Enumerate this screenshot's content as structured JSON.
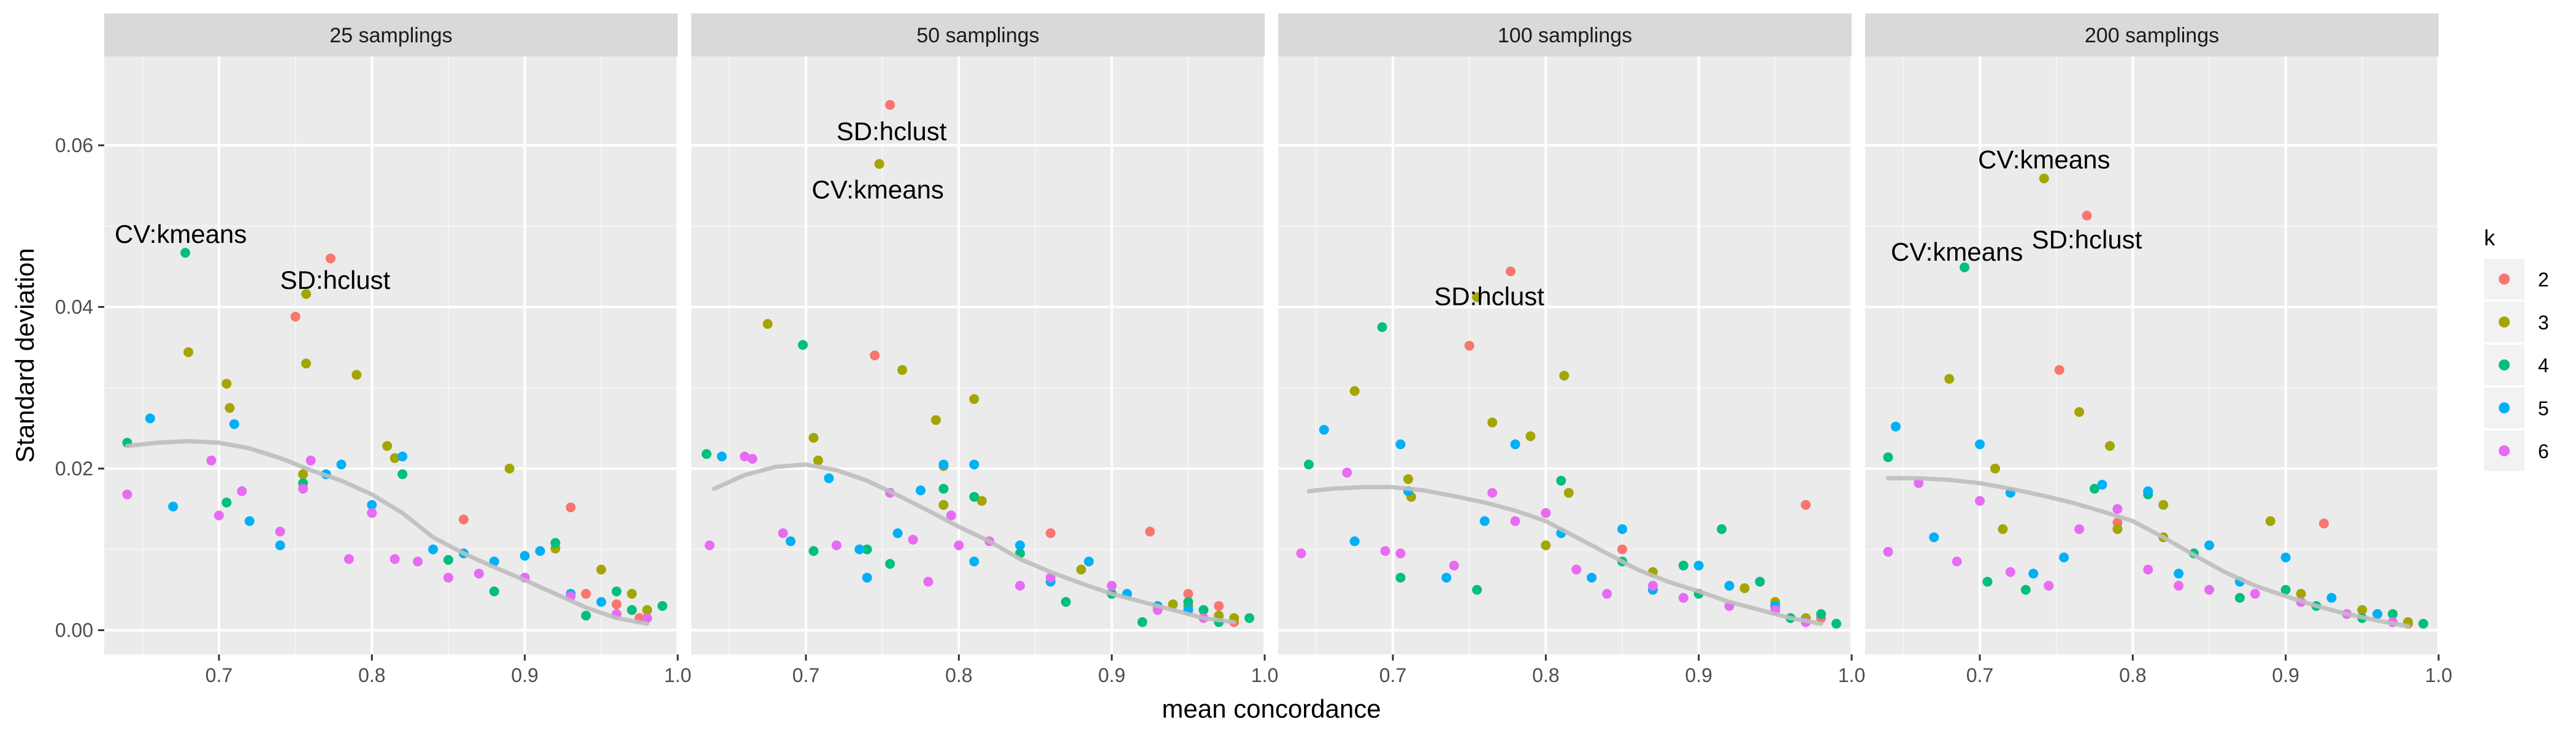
{
  "chart_data": {
    "type": "scatter",
    "xlabel": "mean concordance",
    "ylabel": "Standard deviation",
    "xlim": [
      0.625,
      1.0
    ],
    "ylim": [
      -0.003,
      0.071
    ],
    "x_ticks": [
      0.7,
      0.8,
      0.9,
      1.0
    ],
    "x_tick_labels": [
      "0.7",
      "0.8",
      "0.9",
      "1.0"
    ],
    "y_ticks": [
      0.0,
      0.02,
      0.04,
      0.06
    ],
    "y_tick_labels": [
      "0.00",
      "0.02",
      "0.04",
      "0.06"
    ],
    "grid": true,
    "legend": {
      "title": "k",
      "placement": "right",
      "entries": [
        {
          "label": "2",
          "color": "#F8766D"
        },
        {
          "label": "3",
          "color": "#A3A500"
        },
        {
          "label": "4",
          "color": "#00BF7D"
        },
        {
          "label": "5",
          "color": "#00B0F6"
        },
        {
          "label": "6",
          "color": "#E76BF3"
        }
      ]
    },
    "smooth_color": "#BEBEBE",
    "panels": [
      {
        "title": "25 samplings",
        "series": [
          {
            "name": "2",
            "x": [
              0.75,
              0.773,
              0.86,
              0.93,
              0.94,
              0.96,
              0.975
            ],
            "y": [
              0.0388,
              0.046,
              0.0137,
              0.0152,
              0.0045,
              0.0032,
              0.0015
            ]
          },
          {
            "name": "3",
            "x": [
              0.68,
              0.705,
              0.707,
              0.757,
              0.757,
              0.755,
              0.79,
              0.81,
              0.815,
              0.89,
              0.95,
              0.97,
              0.98,
              0.92
            ],
            "y": [
              0.0344,
              0.0305,
              0.0275,
              0.0416,
              0.033,
              0.0193,
              0.0316,
              0.0228,
              0.0213,
              0.02,
              0.0075,
              0.0045,
              0.0025,
              0.0101
            ]
          },
          {
            "name": "4",
            "x": [
              0.64,
              0.678,
              0.705,
              0.755,
              0.82,
              0.85,
              0.88,
              0.92,
              0.94,
              0.96,
              0.97,
              0.98,
              0.99,
              0.9
            ],
            "y": [
              0.0232,
              0.0467,
              0.0158,
              0.0182,
              0.0193,
              0.0087,
              0.0048,
              0.0108,
              0.0018,
              0.0048,
              0.0025,
              0.0015,
              0.003,
              0.0065
            ]
          },
          {
            "name": "5",
            "x": [
              0.655,
              0.67,
              0.71,
              0.72,
              0.74,
              0.77,
              0.78,
              0.8,
              0.82,
              0.84,
              0.86,
              0.88,
              0.9,
              0.91,
              0.93,
              0.95
            ],
            "y": [
              0.0262,
              0.0153,
              0.0255,
              0.0135,
              0.0105,
              0.0193,
              0.0205,
              0.0155,
              0.0215,
              0.01,
              0.0095,
              0.0085,
              0.0092,
              0.0098,
              0.0045,
              0.0035
            ]
          },
          {
            "name": "6",
            "x": [
              0.64,
              0.695,
              0.7,
              0.715,
              0.74,
              0.76,
              0.785,
              0.8,
              0.815,
              0.83,
              0.85,
              0.87,
              0.9,
              0.93,
              0.96,
              0.98,
              0.755
            ],
            "y": [
              0.0168,
              0.021,
              0.0142,
              0.0172,
              0.0122,
              0.021,
              0.0088,
              0.0145,
              0.0088,
              0.0085,
              0.0065,
              0.007,
              0.0065,
              0.0042,
              0.002,
              0.0015,
              0.0175
            ]
          }
        ],
        "smooth": {
          "x": [
            0.64,
            0.66,
            0.68,
            0.7,
            0.72,
            0.74,
            0.76,
            0.78,
            0.8,
            0.82,
            0.84,
            0.86,
            0.88,
            0.9,
            0.92,
            0.94,
            0.96,
            0.98
          ],
          "y": [
            0.0228,
            0.0232,
            0.0234,
            0.0232,
            0.0225,
            0.0213,
            0.0198,
            0.0185,
            0.0168,
            0.0145,
            0.0115,
            0.0095,
            0.0078,
            0.0062,
            0.0045,
            0.0028,
            0.0015,
            0.0008
          ]
        },
        "annotations": [
          {
            "text": "CV:kmeans",
            "x": 0.675,
            "y": 0.049
          },
          {
            "text": "SD:hclust",
            "x": 0.776,
            "y": 0.0433
          }
        ]
      },
      {
        "title": "50 samplings",
        "series": [
          {
            "name": "2",
            "x": [
              0.745,
              0.755,
              0.86,
              0.925,
              0.95,
              0.97,
              0.98
            ],
            "y": [
              0.034,
              0.065,
              0.012,
              0.0122,
              0.0045,
              0.003,
              0.001
            ]
          },
          {
            "name": "3",
            "x": [
              0.675,
              0.705,
              0.708,
              0.748,
              0.763,
              0.785,
              0.79,
              0.81,
              0.815,
              0.79,
              0.88,
              0.95,
              0.97,
              0.98,
              0.94
            ],
            "y": [
              0.0379,
              0.0238,
              0.021,
              0.0577,
              0.0322,
              0.026,
              0.0203,
              0.0286,
              0.016,
              0.0155,
              0.0075,
              0.003,
              0.0018,
              0.0015,
              0.0032
            ]
          },
          {
            "name": "4",
            "x": [
              0.635,
              0.698,
              0.705,
              0.74,
              0.755,
              0.79,
              0.81,
              0.84,
              0.87,
              0.9,
              0.92,
              0.95,
              0.97,
              0.96,
              0.99
            ],
            "y": [
              0.0218,
              0.0353,
              0.0098,
              0.01,
              0.0082,
              0.0175,
              0.0165,
              0.0095,
              0.0035,
              0.0045,
              0.001,
              0.0035,
              0.001,
              0.0025,
              0.0015
            ]
          },
          {
            "name": "5",
            "x": [
              0.645,
              0.69,
              0.715,
              0.735,
              0.74,
              0.76,
              0.775,
              0.79,
              0.81,
              0.81,
              0.84,
              0.86,
              0.885,
              0.91,
              0.93,
              0.95
            ],
            "y": [
              0.0215,
              0.011,
              0.0188,
              0.01,
              0.0065,
              0.012,
              0.0173,
              0.0205,
              0.0205,
              0.0085,
              0.0105,
              0.006,
              0.0085,
              0.0045,
              0.003,
              0.0025
            ]
          },
          {
            "name": "6",
            "x": [
              0.637,
              0.66,
              0.665,
              0.685,
              0.72,
              0.755,
              0.77,
              0.78,
              0.795,
              0.8,
              0.82,
              0.84,
              0.86,
              0.9,
              0.93,
              0.96
            ],
            "y": [
              0.0105,
              0.0215,
              0.0212,
              0.012,
              0.0105,
              0.017,
              0.0112,
              0.006,
              0.0142,
              0.0105,
              0.011,
              0.0055,
              0.0065,
              0.0055,
              0.0025,
              0.0015
            ]
          }
        ],
        "smooth": {
          "x": [
            0.64,
            0.66,
            0.68,
            0.7,
            0.72,
            0.74,
            0.76,
            0.78,
            0.8,
            0.82,
            0.84,
            0.86,
            0.88,
            0.9,
            0.92,
            0.94,
            0.96,
            0.98
          ],
          "y": [
            0.0175,
            0.0192,
            0.0202,
            0.0205,
            0.0198,
            0.0185,
            0.0167,
            0.0148,
            0.0128,
            0.011,
            0.0088,
            0.0072,
            0.0058,
            0.0045,
            0.0035,
            0.0025,
            0.0015,
            0.001
          ]
        },
        "annotations": [
          {
            "text": "SD:hclust",
            "x": 0.756,
            "y": 0.0617
          },
          {
            "text": "CV:kmeans",
            "x": 0.747,
            "y": 0.0545
          }
        ]
      },
      {
        "title": "100 samplings",
        "series": [
          {
            "name": "2",
            "x": [
              0.75,
              0.777,
              0.85,
              0.97,
              0.98
            ],
            "y": [
              0.0352,
              0.0444,
              0.01,
              0.0155,
              0.0015
            ]
          },
          {
            "name": "3",
            "x": [
              0.675,
              0.71,
              0.712,
              0.755,
              0.765,
              0.79,
              0.812,
              0.815,
              0.87,
              0.93,
              0.95,
              0.97,
              0.8
            ],
            "y": [
              0.0296,
              0.0187,
              0.0165,
              0.0412,
              0.0257,
              0.024,
              0.0315,
              0.017,
              0.0072,
              0.0052,
              0.0035,
              0.0015,
              0.0105
            ]
          },
          {
            "name": "4",
            "x": [
              0.645,
              0.693,
              0.705,
              0.755,
              0.81,
              0.85,
              0.89,
              0.915,
              0.94,
              0.96,
              0.98,
              0.99,
              0.9
            ],
            "y": [
              0.0205,
              0.0375,
              0.0065,
              0.005,
              0.0185,
              0.0085,
              0.008,
              0.0125,
              0.006,
              0.0015,
              0.002,
              0.0008,
              0.0045
            ]
          },
          {
            "name": "5",
            "x": [
              0.655,
              0.675,
              0.705,
              0.71,
              0.735,
              0.76,
              0.78,
              0.81,
              0.83,
              0.85,
              0.87,
              0.9,
              0.92,
              0.95,
              0.97
            ],
            "y": [
              0.0248,
              0.011,
              0.023,
              0.0172,
              0.0065,
              0.0135,
              0.023,
              0.012,
              0.0065,
              0.0125,
              0.005,
              0.008,
              0.0055,
              0.003,
              0.001
            ]
          },
          {
            "name": "6",
            "x": [
              0.64,
              0.67,
              0.695,
              0.705,
              0.74,
              0.765,
              0.78,
              0.8,
              0.82,
              0.84,
              0.87,
              0.89,
              0.92,
              0.95,
              0.97
            ],
            "y": [
              0.0095,
              0.0195,
              0.0098,
              0.0095,
              0.008,
              0.017,
              0.0135,
              0.0145,
              0.0075,
              0.0045,
              0.0055,
              0.004,
              0.003,
              0.0025,
              0.001
            ]
          }
        ],
        "smooth": {
          "x": [
            0.645,
            0.66,
            0.68,
            0.7,
            0.72,
            0.74,
            0.76,
            0.78,
            0.8,
            0.82,
            0.84,
            0.86,
            0.88,
            0.9,
            0.92,
            0.94,
            0.96,
            0.98
          ],
          "y": [
            0.0172,
            0.0175,
            0.0177,
            0.0177,
            0.0173,
            0.0166,
            0.0158,
            0.0148,
            0.0135,
            0.0115,
            0.0095,
            0.0075,
            0.006,
            0.0048,
            0.0035,
            0.0025,
            0.0015,
            0.0008
          ]
        },
        "annotations": [
          {
            "text": "SD:hclust",
            "x": 0.763,
            "y": 0.0413
          }
        ]
      },
      {
        "title": "200 samplings",
        "series": [
          {
            "name": "2",
            "x": [
              0.752,
              0.77,
              0.79,
              0.925,
              0.96,
              0.98
            ],
            "y": [
              0.0322,
              0.0513,
              0.0133,
              0.0132,
              0.002,
              0.0008
            ]
          },
          {
            "name": "3",
            "x": [
              0.68,
              0.71,
              0.715,
              0.742,
              0.765,
              0.785,
              0.79,
              0.82,
              0.82,
              0.89,
              0.91,
              0.95,
              0.98
            ],
            "y": [
              0.0311,
              0.02,
              0.0125,
              0.0559,
              0.027,
              0.0228,
              0.0125,
              0.0155,
              0.0115,
              0.0135,
              0.0045,
              0.0025,
              0.001
            ]
          },
          {
            "name": "4",
            "x": [
              0.64,
              0.69,
              0.705,
              0.73,
              0.775,
              0.81,
              0.84,
              0.87,
              0.9,
              0.92,
              0.95,
              0.97,
              0.99
            ],
            "y": [
              0.0214,
              0.0449,
              0.006,
              0.005,
              0.0175,
              0.0168,
              0.0095,
              0.004,
              0.005,
              0.003,
              0.0015,
              0.002,
              0.0008
            ]
          },
          {
            "name": "5",
            "x": [
              0.645,
              0.67,
              0.7,
              0.72,
              0.735,
              0.755,
              0.78,
              0.81,
              0.83,
              0.85,
              0.87,
              0.9,
              0.93,
              0.96
            ],
            "y": [
              0.0252,
              0.0115,
              0.023,
              0.017,
              0.007,
              0.009,
              0.018,
              0.0172,
              0.007,
              0.0105,
              0.006,
              0.009,
              0.004,
              0.002
            ]
          },
          {
            "name": "6",
            "x": [
              0.64,
              0.66,
              0.685,
              0.7,
              0.72,
              0.745,
              0.765,
              0.79,
              0.81,
              0.83,
              0.85,
              0.88,
              0.91,
              0.94,
              0.97
            ],
            "y": [
              0.0097,
              0.0182,
              0.0085,
              0.016,
              0.0072,
              0.0055,
              0.0125,
              0.015,
              0.0075,
              0.0055,
              0.005,
              0.0045,
              0.0035,
              0.002,
              0.001
            ]
          }
        ],
        "smooth": {
          "x": [
            0.64,
            0.66,
            0.68,
            0.7,
            0.72,
            0.74,
            0.76,
            0.78,
            0.8,
            0.82,
            0.84,
            0.86,
            0.88,
            0.9,
            0.92,
            0.94,
            0.96,
            0.98
          ],
          "y": [
            0.0188,
            0.0188,
            0.0186,
            0.0182,
            0.0175,
            0.0167,
            0.0158,
            0.0147,
            0.0135,
            0.0115,
            0.0093,
            0.0072,
            0.0055,
            0.0042,
            0.003,
            0.002,
            0.0012,
            0.0005
          ]
        },
        "annotations": [
          {
            "text": "CV:kmeans",
            "x": 0.742,
            "y": 0.0582
          },
          {
            "text": "CV:kmeans",
            "x": 0.685,
            "y": 0.0468
          },
          {
            "text": "SD:hclust",
            "x": 0.77,
            "y": 0.0483
          }
        ]
      }
    ]
  }
}
